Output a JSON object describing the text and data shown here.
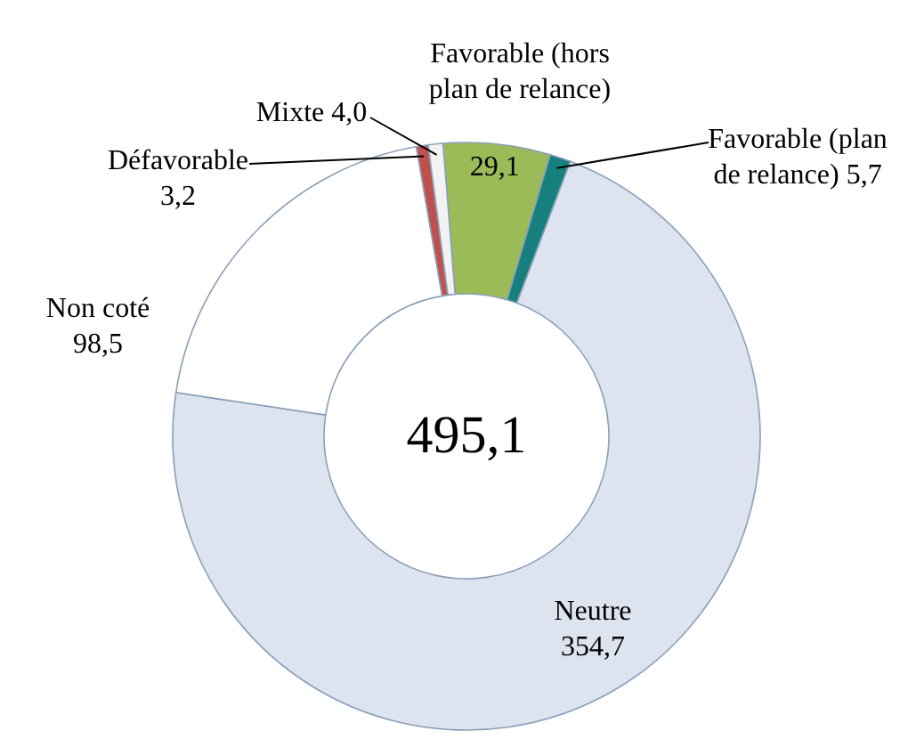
{
  "chart_data": {
    "type": "donut",
    "categories": [
      "Favorable (hors plan de relance)",
      "Favorable (plan de relance)",
      "Neutre",
      "Non coté",
      "Défavorable",
      "Mixte"
    ],
    "values": [
      29.1,
      5.7,
      354.7,
      98.5,
      3.2,
      4.0
    ],
    "colors": [
      "#9bbb59",
      "#17807e",
      "#dde3ef",
      "#ffffff",
      "#c0504d",
      "#f2f2f2"
    ],
    "value_labels": [
      "29,1",
      "5,7",
      "354,7",
      "98,5",
      "3,2",
      "4,0"
    ],
    "annotations": [
      "495,1"
    ],
    "legend": false
  }
}
